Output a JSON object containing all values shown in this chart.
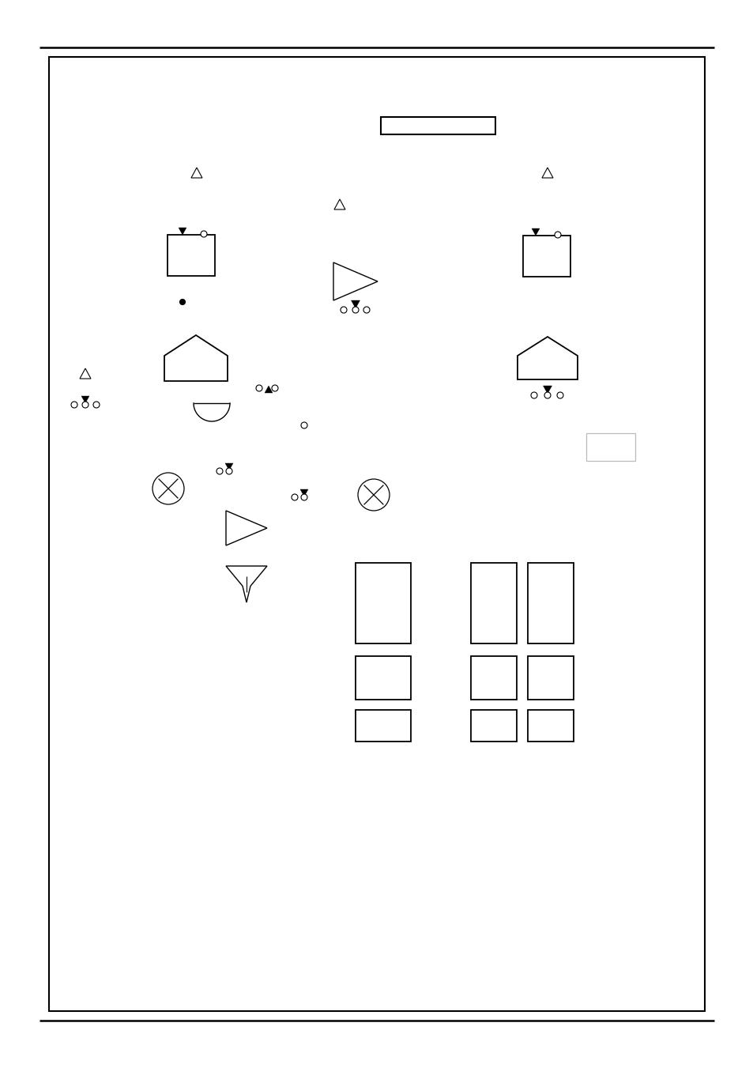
{
  "bg": "#ffffff",
  "lc": "#000000",
  "gc": "#bbbbbb",
  "fig_w": 9.54,
  "fig_h": 13.51,
  "dpi": 100
}
